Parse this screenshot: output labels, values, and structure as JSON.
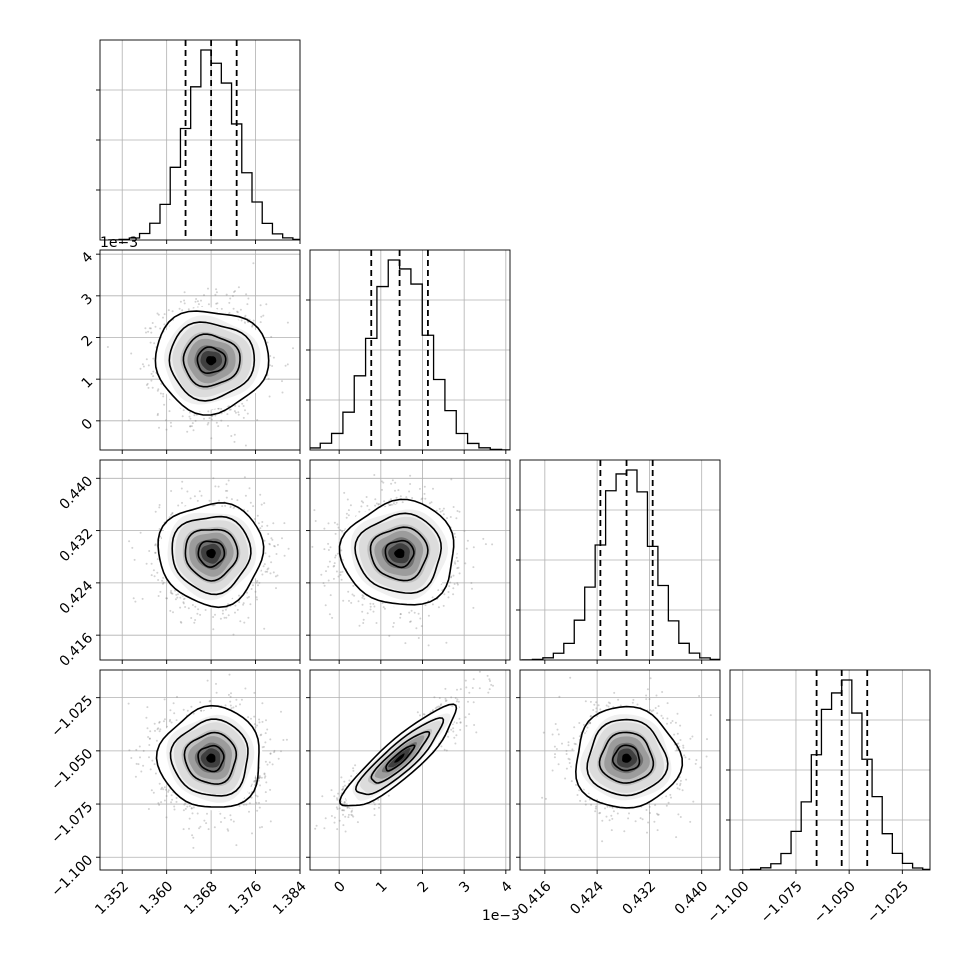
{
  "chart_data": {
    "type": "corner",
    "parameters": [
      {
        "index": 0,
        "range": [
          1.348,
          1.384
        ],
        "ticks": [
          "1.352",
          "1.360",
          "1.368",
          "1.376",
          "1.384"
        ],
        "tick_values": [
          1.352,
          1.36,
          1.368,
          1.376,
          1.384
        ],
        "offset_text": "",
        "median": 1.368,
        "q16": 1.3634,
        "q84": 1.3726,
        "std": 0.0046
      },
      {
        "index": 1,
        "range": [
          -0.0007,
          0.0041
        ],
        "ticks": [
          "0",
          "1",
          "2",
          "3",
          "4"
        ],
        "tick_values": [
          0,
          0.001,
          0.002,
          0.003,
          0.004
        ],
        "offset_text": "1e−3",
        "median": 0.00145,
        "q16": 0.00077,
        "q84": 0.00213,
        "std": 0.00068
      },
      {
        "index": 2,
        "range": [
          0.4122,
          0.4428
        ],
        "ticks": [
          "0.416",
          "0.424",
          "0.432",
          "0.440"
        ],
        "tick_values": [
          0.416,
          0.424,
          0.432,
          0.44
        ],
        "offset_text": "",
        "median": 0.4285,
        "q16": 0.4245,
        "q84": 0.4325,
        "std": 0.004
      },
      {
        "index": 3,
        "range": [
          -1.106,
          -1.012
        ],
        "ticks": [
          "−1.100",
          "−1.075",
          "−1.050",
          "−1.025"
        ],
        "tick_values": [
          -1.1,
          -1.075,
          -1.05,
          -1.025
        ],
        "offset_text": "",
        "median": -1.0535,
        "q16": -1.0653,
        "q84": -1.0415,
        "std": 0.0119
      }
    ],
    "correlations": {
      "0-1": 0.0,
      "0-2": 0.0,
      "0-3": 0.0,
      "1-2": 0.0,
      "1-3": 0.88,
      "2-3": 0.0
    },
    "contour_levels_sigma": [
      0.5,
      1.0,
      1.5,
      2.0
    ],
    "histogram_bins": 20,
    "grid": true,
    "quantile_lines": "dashed"
  }
}
